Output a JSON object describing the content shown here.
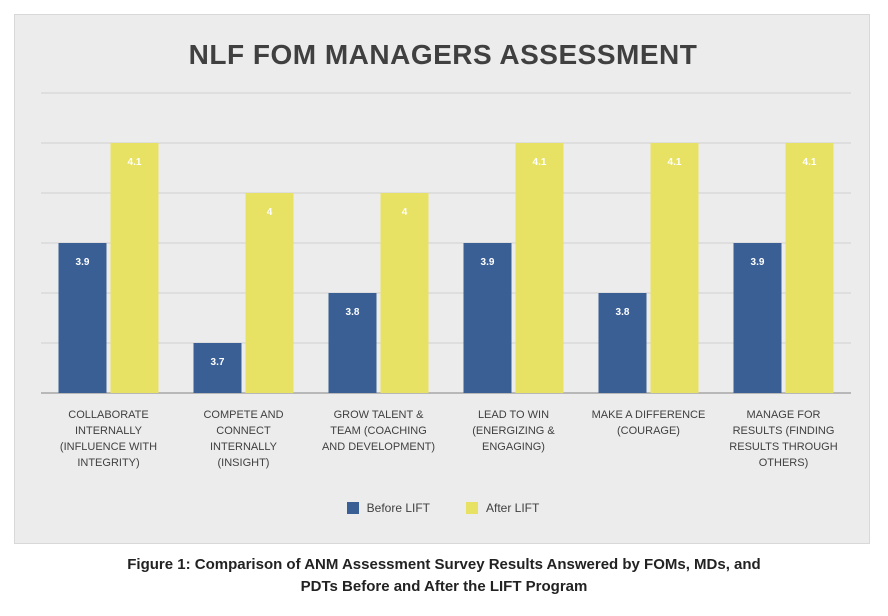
{
  "chart_data": {
    "type": "bar",
    "title": "NLF FOM MANAGERS ASSESSMENT",
    "categories": [
      [
        "COLLABORATE",
        "INTERNALLY",
        "(INFLUENCE WITH",
        "INTEGRITY)"
      ],
      [
        "COMPETE AND",
        "CONNECT INTERNALLY",
        "(INSIGHT)"
      ],
      [
        "GROW TALENT &",
        "TEAM (COACHING",
        "AND DEVELOPMENT)"
      ],
      [
        "LEAD TO WIN",
        "(ENERGIZING &",
        "ENGAGING)"
      ],
      [
        "MAKE A DIFFERENCE",
        "(COURAGE)"
      ],
      [
        "MANAGE FOR",
        "RESULTS (FINDING",
        "RESULTS THROUGH",
        "OTHERS)"
      ]
    ],
    "series": [
      {
        "name": "Before LIFT",
        "color": "#3a5f95",
        "values": [
          3.9,
          3.7,
          3.8,
          3.9,
          3.8,
          3.9
        ],
        "labels": [
          "3.9",
          "3.7",
          "3.8",
          "3.9",
          "3.8",
          "3.9"
        ]
      },
      {
        "name": "After LIFT",
        "color": "#e8e264",
        "values": [
          4.1,
          4,
          4,
          4.1,
          4.1,
          4.1
        ],
        "labels": [
          "4.1",
          "4",
          "4",
          "4.1",
          "4.1",
          "4.1"
        ]
      }
    ],
    "ylim": [
      3.6,
      4.2
    ],
    "grid": true,
    "legend": "bottom"
  },
  "caption": {
    "line1": "Figure 1: Comparison of ANM Assessment Survey Results Answered by FOMs, MDs, and",
    "line2": "PDTs Before and After the LIFT Program"
  }
}
